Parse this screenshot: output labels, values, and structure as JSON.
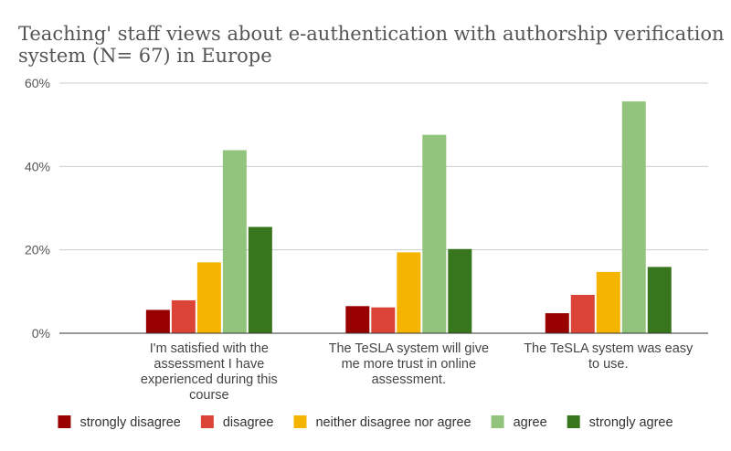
{
  "chart_data": {
    "type": "bar",
    "title_lines": [
      "Teaching' staff views about e-authentication with authorship verification",
      "system (N= 67) in Europe"
    ],
    "ylim": [
      0,
      60
    ],
    "yticks": [
      0,
      20,
      40,
      60
    ],
    "ytick_suffix": "%",
    "grid": true,
    "legend_position": "bottom",
    "categories": [
      [
        "I'm satisfied with the",
        "assessment I have",
        "experienced during this",
        "course"
      ],
      [
        "The TeSLA system will give",
        "me more trust in online",
        "assessment."
      ],
      [
        "The TeSLA system was easy",
        "to use."
      ]
    ],
    "series": [
      {
        "name": "strongly disagree",
        "color": "#990000",
        "values": [
          5.6,
          6.5,
          4.8
        ]
      },
      {
        "name": "disagree",
        "color": "#dc4437",
        "values": [
          7.9,
          6.2,
          9.2
        ]
      },
      {
        "name": "neither disagree nor agree",
        "color": "#f4b400",
        "values": [
          17.0,
          19.4,
          14.7
        ]
      },
      {
        "name": "agree",
        "color": "#93c47d",
        "values": [
          43.9,
          47.6,
          55.6
        ]
      },
      {
        "name": "strongly agree",
        "color": "#38761d",
        "values": [
          25.5,
          20.2,
          15.9
        ]
      }
    ]
  }
}
